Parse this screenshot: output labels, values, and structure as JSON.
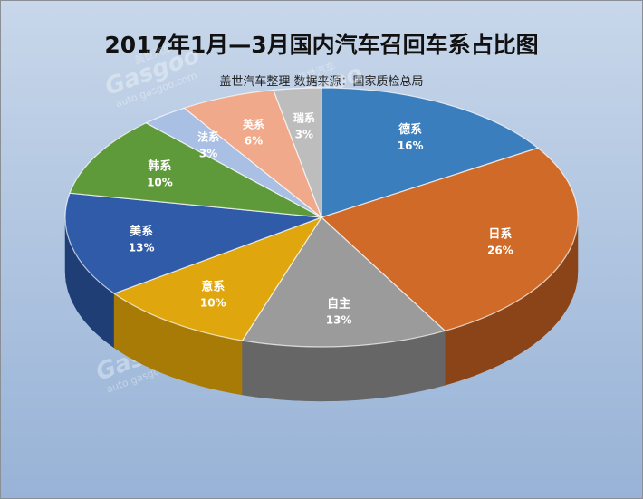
{
  "title": "2017年1月—3月国内汽车召回车系占比图",
  "subtitle": "盖世汽车整理  数据来源：国家质检总局",
  "watermark": {
    "brand": "Gasgoo",
    "cn": "盖世汽车",
    "url": "auto.gasgoo.com"
  },
  "chart_data": {
    "type": "pie",
    "title": "2017年1月—3月国内汽车召回车系占比图",
    "style": "3d",
    "categories": [
      "德系",
      "日系",
      "自主",
      "意系",
      "美系",
      "韩系",
      "法系",
      "英系",
      "瑞系"
    ],
    "values": [
      16,
      26,
      13,
      10,
      13,
      10,
      3,
      6,
      3
    ],
    "value_labels": [
      "16%",
      "26%",
      "13%",
      "10%",
      "13%",
      "10%",
      "3%",
      "6%",
      "3%"
    ],
    "colors": [
      "#3a7ebd",
      "#cf6a28",
      "#9b9b9b",
      "#e0a60e",
      "#2f5ba8",
      "#5f9a3a",
      "#a9c0e4",
      "#f0a98a",
      "#bdbdbd"
    ],
    "side_colors": [
      "#2a5c8c",
      "#8a4418",
      "#666666",
      "#a87a06",
      "#1f3e76",
      "#3f6a26",
      "#7f93b4",
      "#b47a62",
      "#8c8c8c"
    ],
    "start": "12 o'clock",
    "direction": "clockwise"
  }
}
